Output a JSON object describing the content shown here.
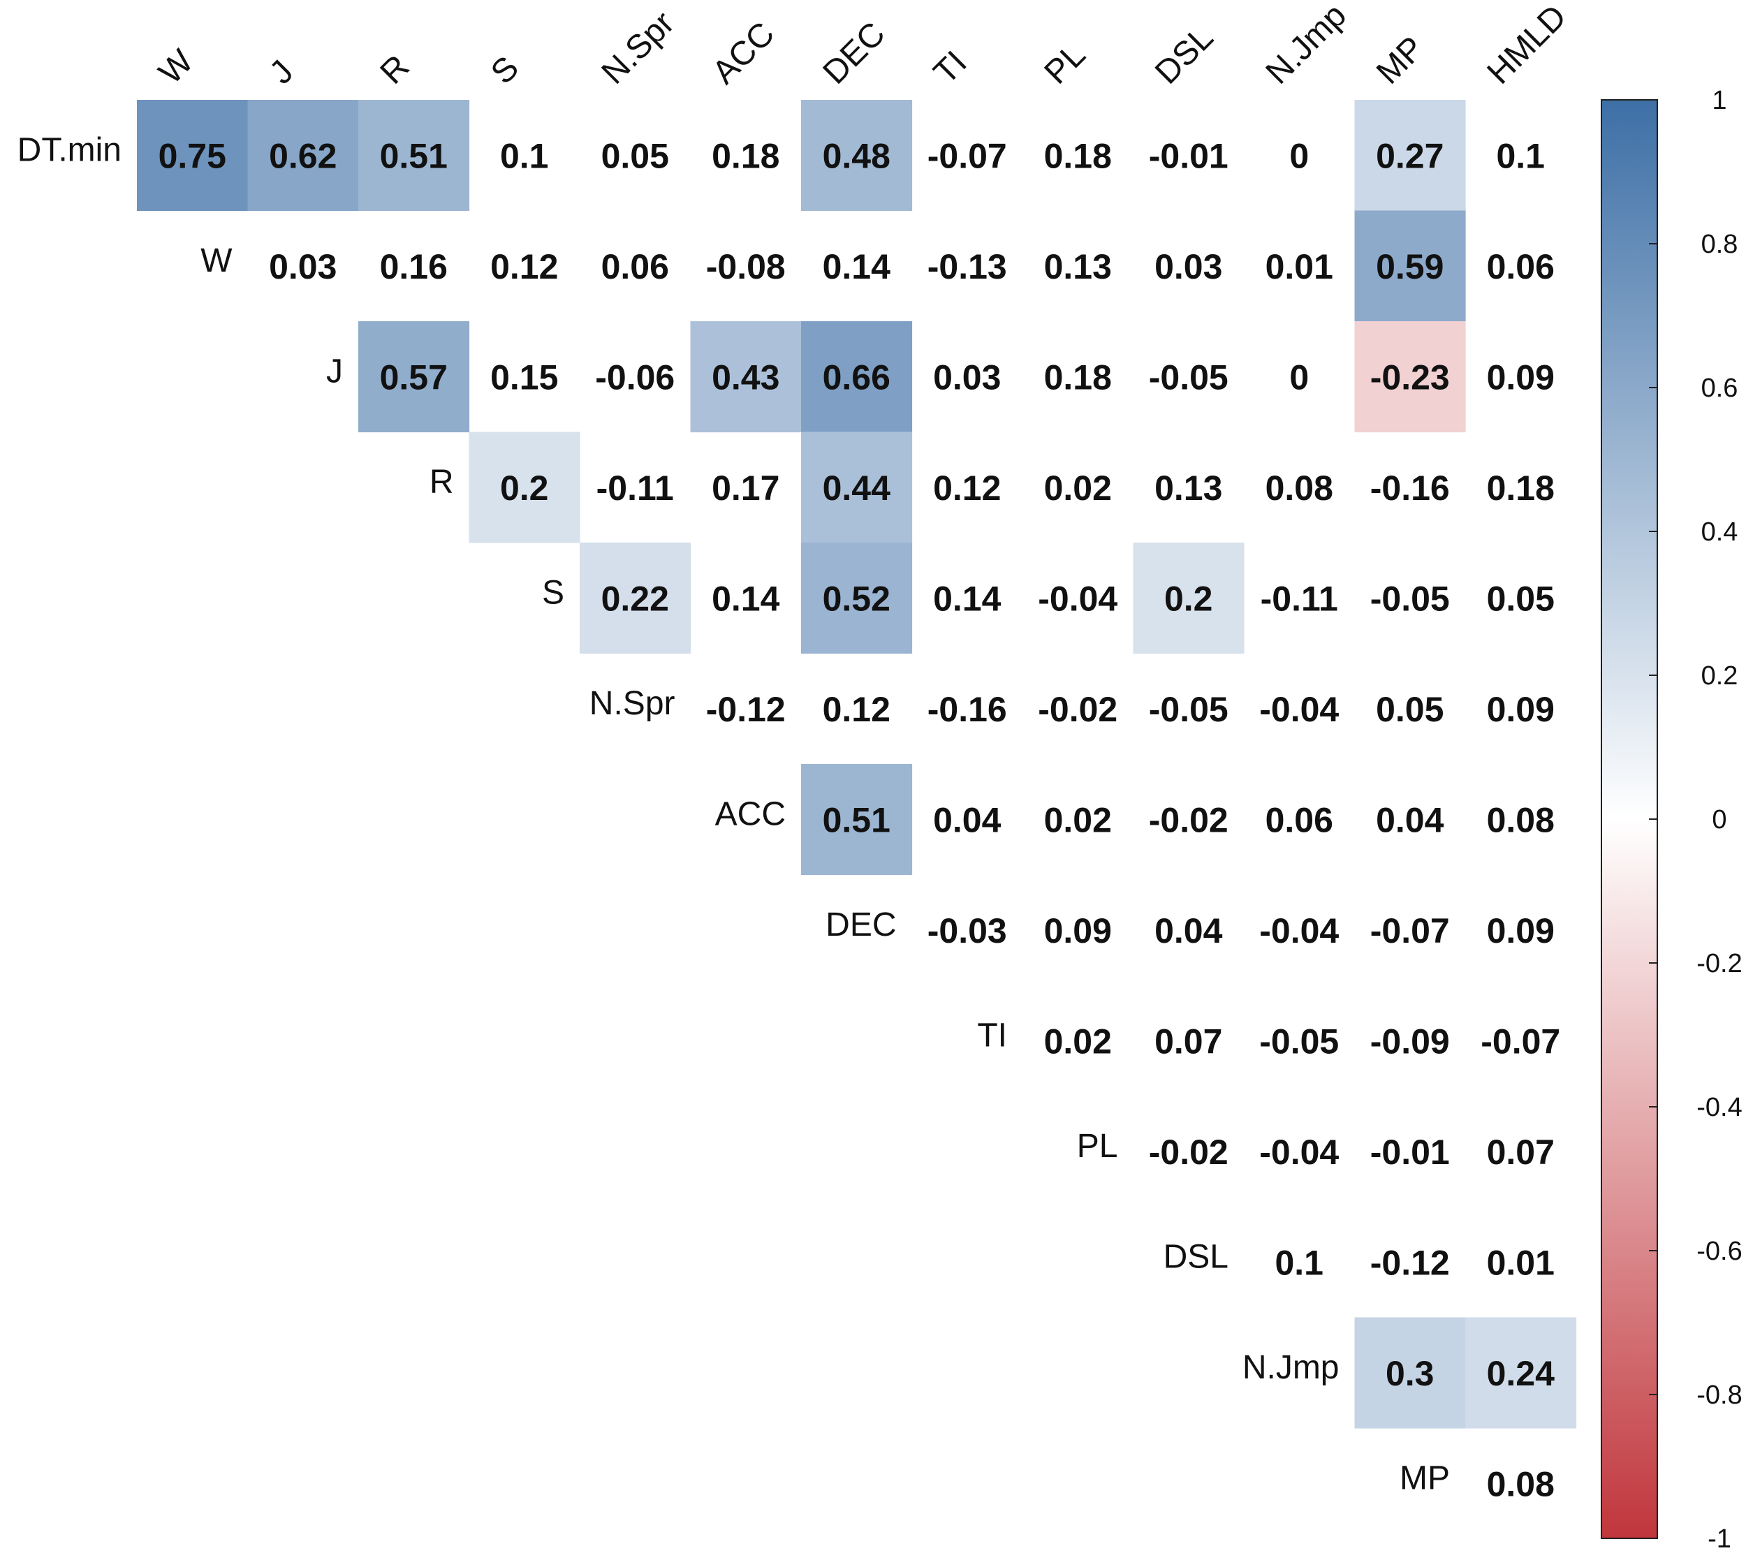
{
  "chart_data": {
    "type": "heatmap",
    "title": "",
    "row_labels": [
      "DT.min",
      "W",
      "J",
      "R",
      "S",
      "N.Spr",
      "ACC",
      "DEC",
      "TI",
      "PL",
      "DSL",
      "N.Jmp",
      "MP"
    ],
    "col_labels": [
      "W",
      "J",
      "R",
      "S",
      "N.Spr",
      "ACC",
      "DEC",
      "TI",
      "PL",
      "DSL",
      "N.Jmp",
      "MP",
      "HMLD"
    ],
    "values": [
      [
        "0.75",
        "0.62",
        "0.51",
        "0.1",
        "0.05",
        "0.18",
        "0.48",
        "-0.07",
        "0.18",
        "-0.01",
        "0",
        "0.27",
        "0.1"
      ],
      [
        null,
        "0.03",
        "0.16",
        "0.12",
        "0.06",
        "-0.08",
        "0.14",
        "-0.13",
        "0.13",
        "0.03",
        "0.01",
        "0.59",
        "0.06"
      ],
      [
        null,
        null,
        "0.57",
        "0.15",
        "-0.06",
        "0.43",
        "0.66",
        "0.03",
        "0.18",
        "-0.05",
        "0",
        "-0.23",
        "0.09"
      ],
      [
        null,
        null,
        null,
        "0.2",
        "-0.11",
        "0.17",
        "0.44",
        "0.12",
        "0.02",
        "0.13",
        "0.08",
        "-0.16",
        "0.18"
      ],
      [
        null,
        null,
        null,
        null,
        "0.22",
        "0.14",
        "0.52",
        "0.14",
        "-0.04",
        "0.2",
        "-0.11",
        "-0.05",
        "0.05"
      ],
      [
        null,
        null,
        null,
        null,
        null,
        "-0.12",
        "0.12",
        "-0.16",
        "-0.02",
        "-0.05",
        "-0.04",
        "0.05",
        "0.09"
      ],
      [
        null,
        null,
        null,
        null,
        null,
        null,
        "0.51",
        "0.04",
        "0.02",
        "-0.02",
        "0.06",
        "0.04",
        "0.08"
      ],
      [
        null,
        null,
        null,
        null,
        null,
        null,
        null,
        "-0.03",
        "0.09",
        "0.04",
        "-0.04",
        "-0.07",
        "0.09"
      ],
      [
        null,
        null,
        null,
        null,
        null,
        null,
        null,
        null,
        "0.02",
        "0.07",
        "-0.05",
        "-0.09",
        "-0.07"
      ],
      [
        null,
        null,
        null,
        null,
        null,
        null,
        null,
        null,
        null,
        "-0.02",
        "-0.04",
        "-0.01",
        "0.07"
      ],
      [
        null,
        null,
        null,
        null,
        null,
        null,
        null,
        null,
        null,
        null,
        "0.1",
        "-0.12",
        "0.01"
      ],
      [
        null,
        null,
        null,
        null,
        null,
        null,
        null,
        null,
        null,
        null,
        null,
        "0.3",
        "0.24"
      ],
      [
        null,
        null,
        null,
        null,
        null,
        null,
        null,
        null,
        null,
        null,
        null,
        null,
        "0.08"
      ]
    ],
    "highlight_threshold": 0.2,
    "colorbar": {
      "range": [
        -1,
        1
      ],
      "ticks": [
        "1",
        "0.8",
        "0.6",
        "0.4",
        "0.2",
        "0",
        "-0.2",
        "-0.4",
        "-0.6",
        "-0.8",
        "-1"
      ],
      "colors": {
        "positive": "#3d6ea6",
        "zero": "#ffffff",
        "negative": "#c0363c"
      }
    }
  }
}
